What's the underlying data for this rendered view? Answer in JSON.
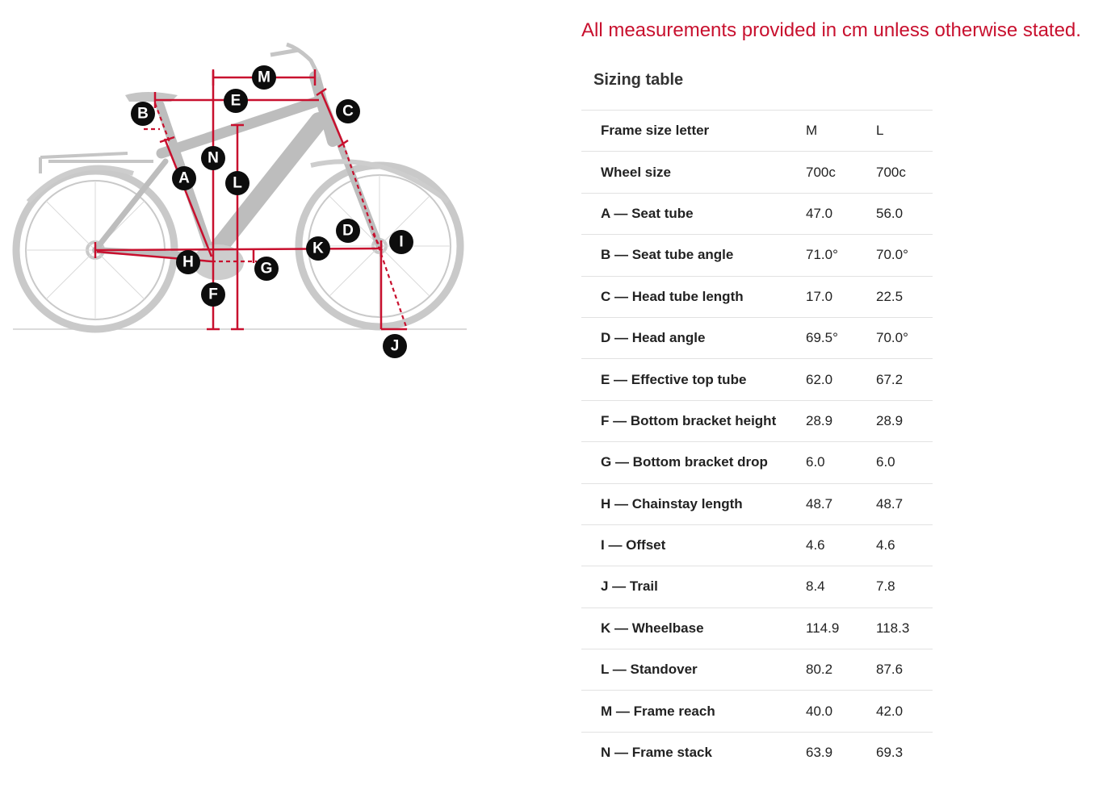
{
  "note": "All measurements provided in cm unless otherwise stated.",
  "table_title": "Sizing table",
  "rows": [
    {
      "label": "Frame size letter",
      "m": "M",
      "l": "L"
    },
    {
      "label": "Wheel size",
      "m": "700c",
      "l": "700c"
    },
    {
      "label": "A — Seat tube",
      "m": "47.0",
      "l": "56.0"
    },
    {
      "label": "B — Seat tube angle",
      "m": "71.0°",
      "l": "70.0°"
    },
    {
      "label": "C — Head tube length",
      "m": "17.0",
      "l": "22.5"
    },
    {
      "label": "D — Head angle",
      "m": "69.5°",
      "l": "70.0°"
    },
    {
      "label": "E — Effective top tube",
      "m": "62.0",
      "l": "67.2"
    },
    {
      "label": "F — Bottom bracket height",
      "m": "28.9",
      "l": "28.9"
    },
    {
      "label": "G — Bottom bracket drop",
      "m": "6.0",
      "l": "6.0"
    },
    {
      "label": "H — Chainstay length",
      "m": "48.7",
      "l": "48.7"
    },
    {
      "label": "I — Offset",
      "m": "4.6",
      "l": "4.6"
    },
    {
      "label": "J — Trail",
      "m": "8.4",
      "l": "7.8"
    },
    {
      "label": "K — Wheelbase",
      "m": "114.9",
      "l": "118.3"
    },
    {
      "label": "L — Standover",
      "m": "80.2",
      "l": "87.6"
    },
    {
      "label": "M — Frame reach",
      "m": "40.0",
      "l": "42.0"
    },
    {
      "label": "N — Frame stack",
      "m": "63.9",
      "l": "69.3"
    }
  ],
  "diagram": {
    "markers": [
      "A",
      "B",
      "C",
      "D",
      "E",
      "F",
      "G",
      "H",
      "I",
      "J",
      "K",
      "L",
      "M",
      "N"
    ],
    "line_color": "#c8102e",
    "bike_color": "#c9c9c9"
  }
}
